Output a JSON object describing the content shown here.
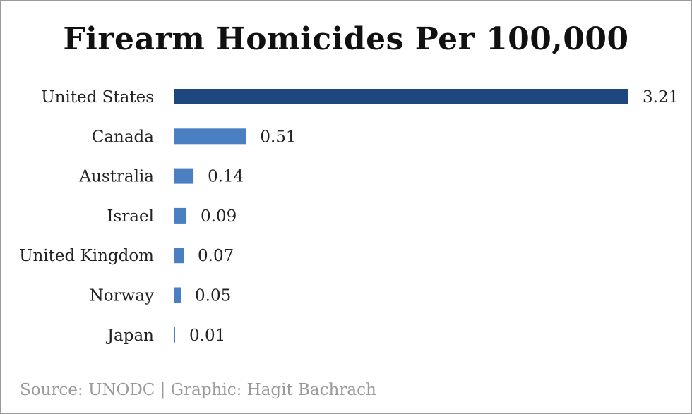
{
  "chart_data": {
    "type": "bar",
    "orientation": "horizontal",
    "title": "Firearm Homicides Per 100,000",
    "categories": [
      "United States",
      "Canada",
      "Australia",
      "Israel",
      "United Kingdom",
      "Norway",
      "Japan"
    ],
    "values": [
      3.21,
      0.51,
      0.14,
      0.09,
      0.07,
      0.05,
      0.01
    ],
    "value_labels": [
      "3.21",
      "0.51",
      "0.14",
      "0.09",
      "0.07",
      "0.05",
      "0.01"
    ],
    "xlim": [
      0,
      3.21
    ],
    "xlabel": "",
    "ylabel": "",
    "grid": false,
    "highlight_color": "#1f477f",
    "bar_color": "#4a7fc1"
  },
  "footer": {
    "source": "Source: UNODC | Graphic: Hagit Bachrach"
  }
}
